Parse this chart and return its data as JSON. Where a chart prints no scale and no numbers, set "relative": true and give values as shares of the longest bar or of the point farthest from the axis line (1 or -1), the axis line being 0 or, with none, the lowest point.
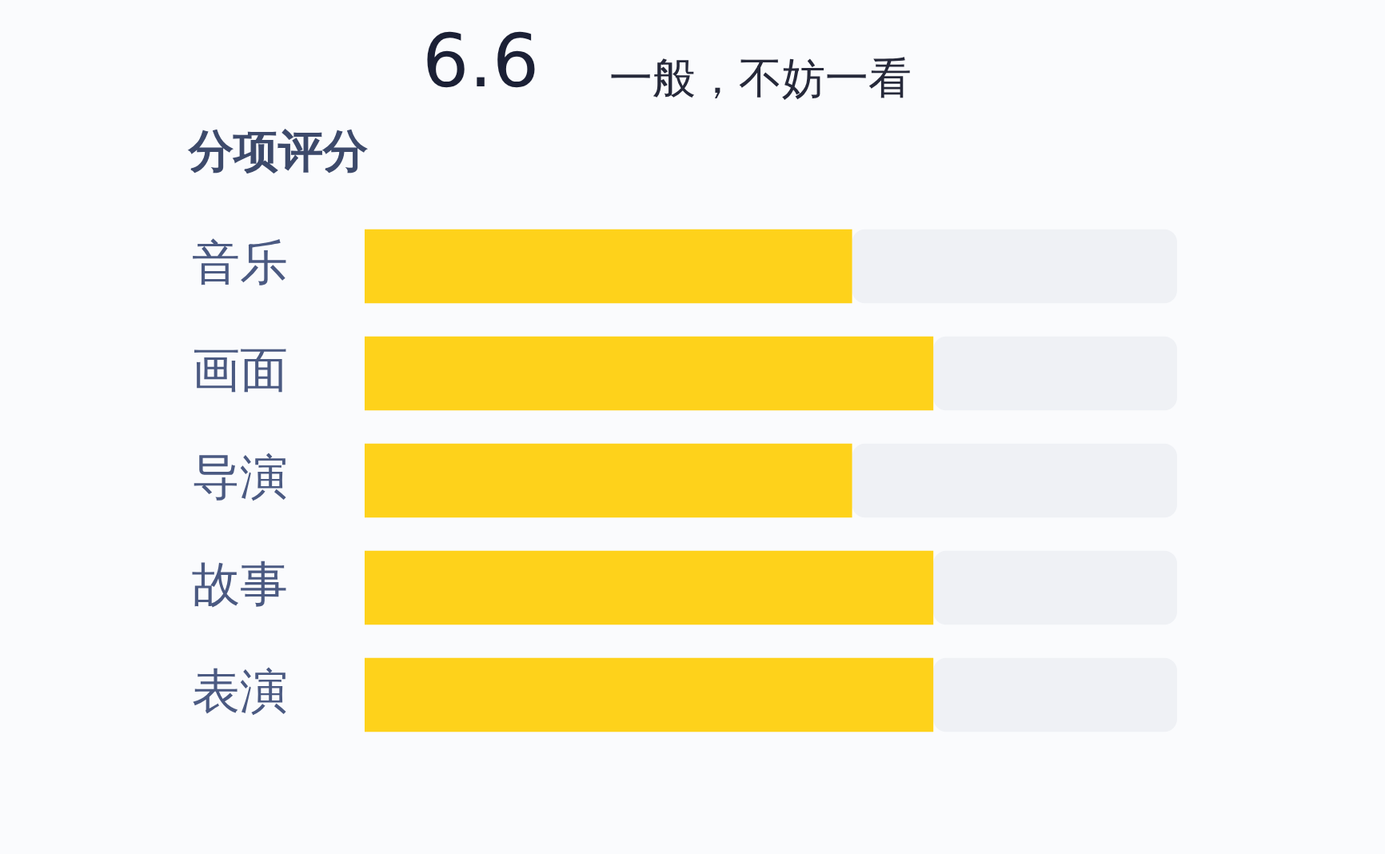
{
  "chart_data": {
    "type": "bar",
    "orientation": "horizontal",
    "stacked": true,
    "relative": true,
    "title": "6.6",
    "subtitle": "一般，不妨一看",
    "annotations": [
      "分项评分"
    ],
    "categories": [
      "音乐",
      "画面",
      "导演",
      "故事",
      "表演"
    ],
    "series": [
      {
        "color": "#fed21b",
        "values": [
          0.6,
          0.7,
          0.6,
          0.7,
          0.7
        ]
      },
      {
        "color": "#eff1f5",
        "values": [
          0.4,
          0.3,
          0.4,
          0.3,
          0.3
        ]
      }
    ]
  }
}
